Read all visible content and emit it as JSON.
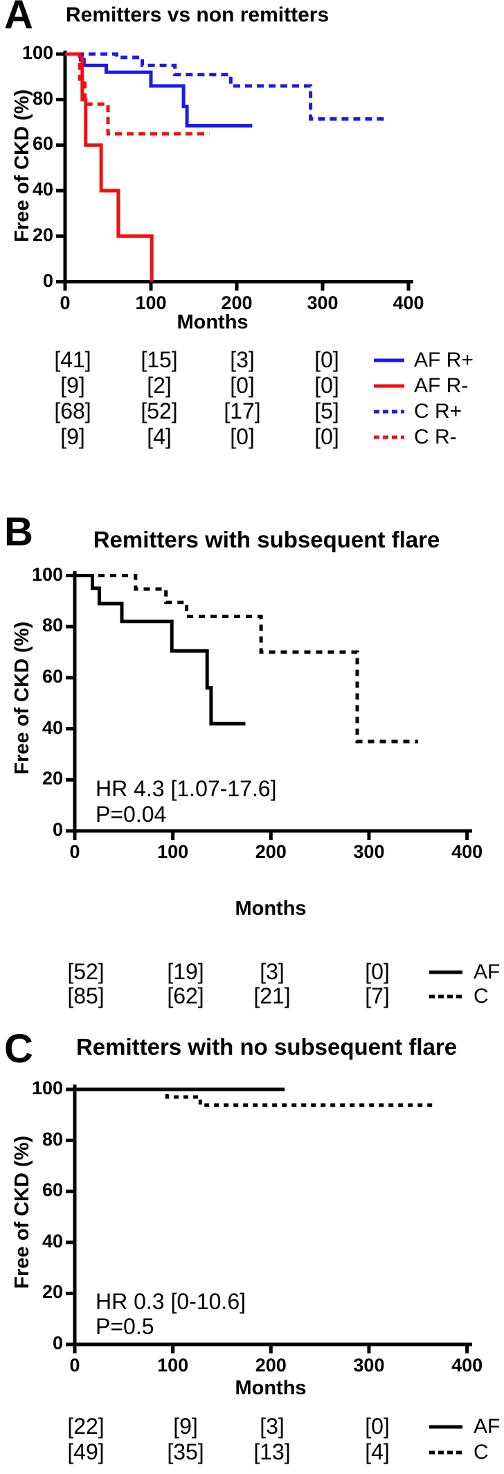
{
  "chart_data": [
    {
      "type": "line",
      "subtype": "kaplan-meier-step",
      "panel": "A",
      "panel_label": "A",
      "title": "Remitters vs non remitters",
      "xlabel": "Months",
      "ylabel": "Free of CKD (%)",
      "xlim": [
        0,
        400
      ],
      "ylim": [
        0,
        100
      ],
      "xticks": [
        0,
        100,
        200,
        300,
        400
      ],
      "yticks": [
        0,
        20,
        40,
        60,
        80,
        100
      ],
      "grid": false,
      "legend_position": "below-right",
      "annotations": [],
      "series": [
        {
          "name": "AF R+",
          "style": "solid",
          "color": "#1a1aee",
          "step_points": [
            [
              0,
              100
            ],
            [
              18,
              100
            ],
            [
              18,
              97.5
            ],
            [
              22,
              97.5
            ],
            [
              22,
              95
            ],
            [
              48,
              95
            ],
            [
              48,
              92
            ],
            [
              100,
              92
            ],
            [
              100,
              86
            ],
            [
              138,
              86
            ],
            [
              138,
              77
            ],
            [
              142,
              77
            ],
            [
              142,
              68.5
            ],
            [
              218,
              68.5
            ]
          ]
        },
        {
          "name": "AF R-",
          "style": "solid",
          "color": "#ee1111",
          "step_points": [
            [
              0,
              100
            ],
            [
              20,
              100
            ],
            [
              20,
              80
            ],
            [
              24,
              80
            ],
            [
              24,
              60
            ],
            [
              42,
              60
            ],
            [
              42,
              40
            ],
            [
              62,
              40
            ],
            [
              62,
              20
            ],
            [
              101,
              20
            ],
            [
              101,
              0
            ]
          ]
        },
        {
          "name": "C R+",
          "style": "dashed",
          "color": "#1a1aee",
          "step_points": [
            [
              0,
              100
            ],
            [
              60,
              100
            ],
            [
              60,
              98.5
            ],
            [
              90,
              98.5
            ],
            [
              90,
              95
            ],
            [
              128,
              95
            ],
            [
              128,
              91
            ],
            [
              193,
              91
            ],
            [
              193,
              86
            ],
            [
              286,
              86
            ],
            [
              286,
              71.5
            ],
            [
              372,
              71.5
            ]
          ]
        },
        {
          "name": "C R-",
          "style": "dashed",
          "color": "#ee1111",
          "step_points": [
            [
              0,
              100
            ],
            [
              17,
              100
            ],
            [
              17,
              89
            ],
            [
              23,
              89
            ],
            [
              23,
              78
            ],
            [
              50,
              78
            ],
            [
              50,
              65
            ],
            [
              168,
              65
            ]
          ]
        }
      ],
      "at_risk": [
        {
          "label": "AF R+",
          "style": "solid",
          "color": "#1a1aee",
          "counts": [
            "[41]",
            "[15]",
            "[3]",
            "[0]"
          ]
        },
        {
          "label": "AF R-",
          "style": "solid",
          "color": "#ee1111",
          "counts": [
            "[9]",
            "[2]",
            "[0]",
            "[0]"
          ]
        },
        {
          "label": "C R+",
          "style": "dashed",
          "color": "#1a1aee",
          "counts": [
            "[68]",
            "[52]",
            "[17]",
            "[5]"
          ]
        },
        {
          "label": "C R-",
          "style": "dashed",
          "color": "#ee1111",
          "counts": [
            "[9]",
            "[4]",
            "[0]",
            "[0]"
          ]
        }
      ]
    },
    {
      "type": "line",
      "subtype": "kaplan-meier-step",
      "panel": "B",
      "panel_label": "B",
      "title": "Remitters with subsequent flare",
      "xlabel": "Months",
      "ylabel": "Free of CKD (%)",
      "xlim": [
        0,
        400
      ],
      "ylim": [
        0,
        100
      ],
      "xticks": [
        0,
        100,
        200,
        300,
        400
      ],
      "yticks": [
        0,
        20,
        40,
        60,
        80,
        100
      ],
      "grid": false,
      "legend_position": "below-right",
      "annotations": [
        "HR 4.3 [1.07-17.6]",
        "P=0.04"
      ],
      "series": [
        {
          "name": "AF",
          "style": "solid",
          "color": "#000000",
          "step_points": [
            [
              0,
              100
            ],
            [
              18,
              100
            ],
            [
              18,
              95
            ],
            [
              25,
              95
            ],
            [
              25,
              89
            ],
            [
              48,
              89
            ],
            [
              48,
              82
            ],
            [
              99,
              82
            ],
            [
              99,
              70.5
            ],
            [
              135,
              70.5
            ],
            [
              135,
              56
            ],
            [
              139,
              56
            ],
            [
              139,
              42
            ],
            [
              174,
              42
            ]
          ]
        },
        {
          "name": "C",
          "style": "dashed",
          "color": "#000000",
          "step_points": [
            [
              0,
              100
            ],
            [
              62,
              100
            ],
            [
              62,
              94.7
            ],
            [
              93,
              94.7
            ],
            [
              93,
              89.5
            ],
            [
              114,
              89.5
            ],
            [
              114,
              84
            ],
            [
              190,
              84
            ],
            [
              190,
              70
            ],
            [
              288,
              70
            ],
            [
              288,
              35
            ],
            [
              350,
              35
            ]
          ]
        }
      ],
      "at_risk": [
        {
          "label": "AF",
          "style": "solid",
          "color": "#000000",
          "counts": [
            "[52]",
            "[19]",
            "[3]",
            "[0]"
          ]
        },
        {
          "label": "C",
          "style": "dashed",
          "color": "#000000",
          "counts": [
            "[85]",
            "[62]",
            "[21]",
            "[7]"
          ]
        }
      ]
    },
    {
      "type": "line",
      "subtype": "kaplan-meier-step",
      "panel": "C",
      "panel_label": "C",
      "title": "Remitters with no subsequent flare",
      "xlabel": "Months",
      "ylabel": "Free of CKD (%)",
      "xlim": [
        0,
        400
      ],
      "ylim": [
        0,
        100
      ],
      "xticks": [
        0,
        100,
        200,
        300,
        400
      ],
      "yticks": [
        0,
        20,
        40,
        60,
        80,
        100
      ],
      "grid": false,
      "legend_position": "below-right",
      "annotations": [
        "HR 0.3 [0-10.6]",
        "P=0.5"
      ],
      "series": [
        {
          "name": "AF",
          "style": "solid",
          "color": "#000000",
          "step_points": [
            [
              0,
              100
            ],
            [
              214,
              100
            ]
          ]
        },
        {
          "name": "C",
          "style": "dashed",
          "color": "#000000",
          "step_points": [
            [
              0,
              100
            ],
            [
              94,
              100
            ],
            [
              94,
              97
            ],
            [
              128,
              97
            ],
            [
              128,
              93.8
            ],
            [
              369,
              93.8
            ]
          ]
        }
      ],
      "at_risk": [
        {
          "label": "AF",
          "style": "solid",
          "color": "#000000",
          "counts": [
            "[22]",
            "[9]",
            "[3]",
            "[0]"
          ]
        },
        {
          "label": "C",
          "style": "dashed",
          "color": "#000000",
          "counts": [
            "[49]",
            "[35]",
            "[13]",
            "[4]"
          ]
        }
      ]
    }
  ],
  "colors": {
    "blue": "#1a1aee",
    "red": "#ee1111",
    "black": "#000000",
    "background": "#ffffff"
  }
}
